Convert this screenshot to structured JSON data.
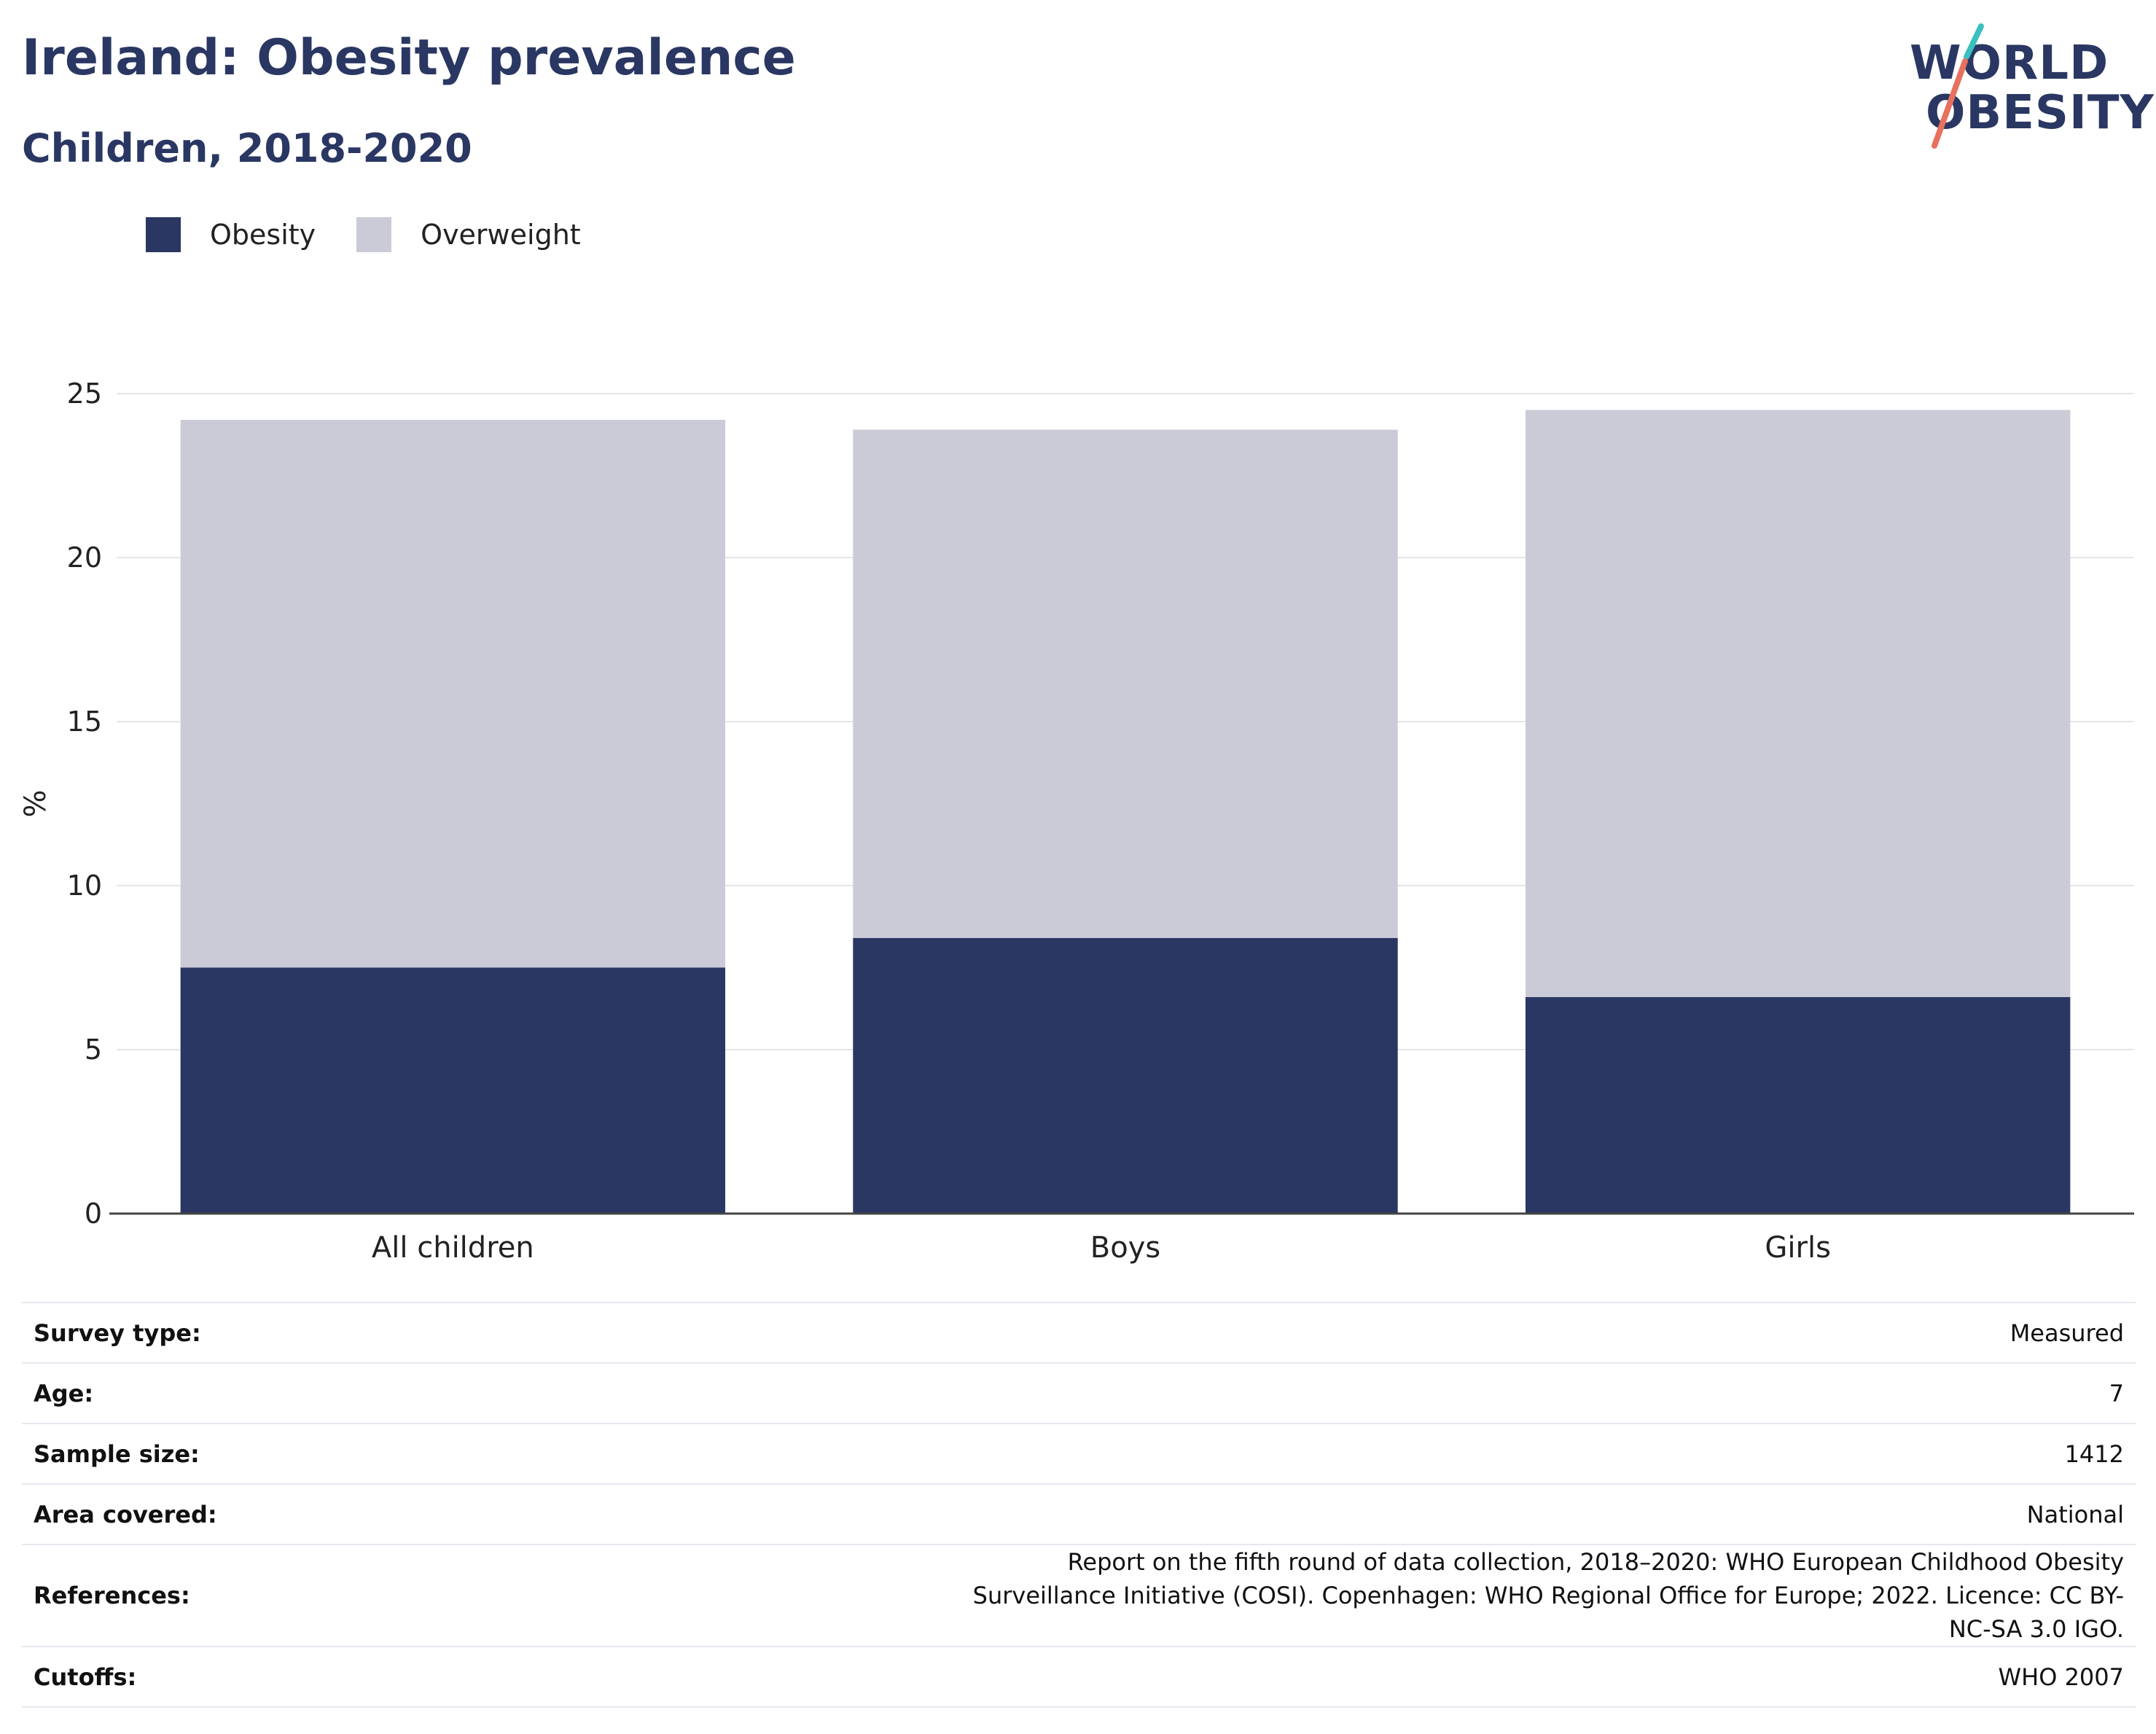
{
  "header": {
    "title": "Ireland: Obesity prevalence",
    "subtitle": "Children, 2018-2020"
  },
  "logo": {
    "line1": "WORLD",
    "line2": "OBESITY",
    "slash_colors": [
      "#3bbfbf",
      "#e8705f"
    ]
  },
  "colors": {
    "obesity": "#2a3763",
    "overweight": "#cacbd7",
    "text": "#2a3763",
    "grid": "#e6e6e6"
  },
  "legend": [
    {
      "label": "Obesity",
      "color": "#2a3763"
    },
    {
      "label": "Overweight",
      "color": "#cacbd7"
    }
  ],
  "chart_data": {
    "type": "bar",
    "stacked": true,
    "categories": [
      "All children",
      "Boys",
      "Girls"
    ],
    "series": [
      {
        "name": "Obesity",
        "values": [
          7.5,
          8.4,
          6.6
        ],
        "color": "#2a3763"
      },
      {
        "name": "Overweight",
        "values": [
          16.7,
          15.5,
          17.9
        ],
        "color": "#cacbd7"
      }
    ],
    "ylabel": "%",
    "ylim": [
      0,
      25
    ],
    "yticks": [
      0,
      5,
      10,
      15,
      20,
      25
    ],
    "grid": true,
    "legend_position": "top-left"
  },
  "info": [
    {
      "key": "Survey type:",
      "value": "Measured"
    },
    {
      "key": "Age:",
      "value": "7"
    },
    {
      "key": "Sample size:",
      "value": "1412"
    },
    {
      "key": "Area covered:",
      "value": "National"
    },
    {
      "key": "References:",
      "value": "Report on the fifth round of data collection, 2018–2020: WHO European Childhood Obesity Surveillance Initiative (COSI). Copenhagen: WHO Regional Office for Europe; 2022. Licence: CC BY-NC-SA 3.0 IGO."
    },
    {
      "key": "Cutoffs:",
      "value": "WHO 2007"
    }
  ]
}
